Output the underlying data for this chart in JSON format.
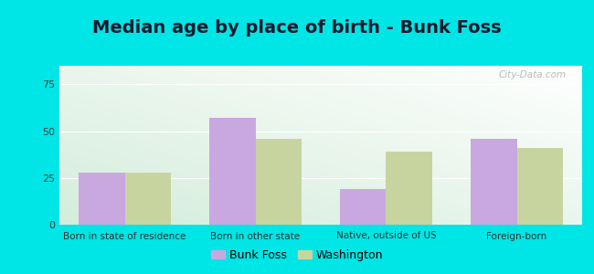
{
  "title": "Median age by place of birth - Bunk Foss",
  "categories": [
    "Born in state of residence",
    "Born in other state",
    "Native, outside of US",
    "Foreign-born"
  ],
  "bunk_foss": [
    28,
    57,
    19,
    46
  ],
  "washington": [
    28,
    46,
    39,
    41
  ],
  "bunk_foss_color": "#c9a8e0",
  "washington_color": "#c8d4a0",
  "ylim": [
    0,
    85
  ],
  "yticks": [
    0,
    25,
    50,
    75
  ],
  "bar_width": 0.35,
  "legend_labels": [
    "Bunk Foss",
    "Washington"
  ],
  "outer_background": "#00e5e5",
  "title_fontsize": 14,
  "title_color": "#1a1a2e",
  "watermark": "City-Data.com",
  "gradient_bottom_color": "#c8e6c0",
  "gradient_top_color": "#f5f5f5"
}
